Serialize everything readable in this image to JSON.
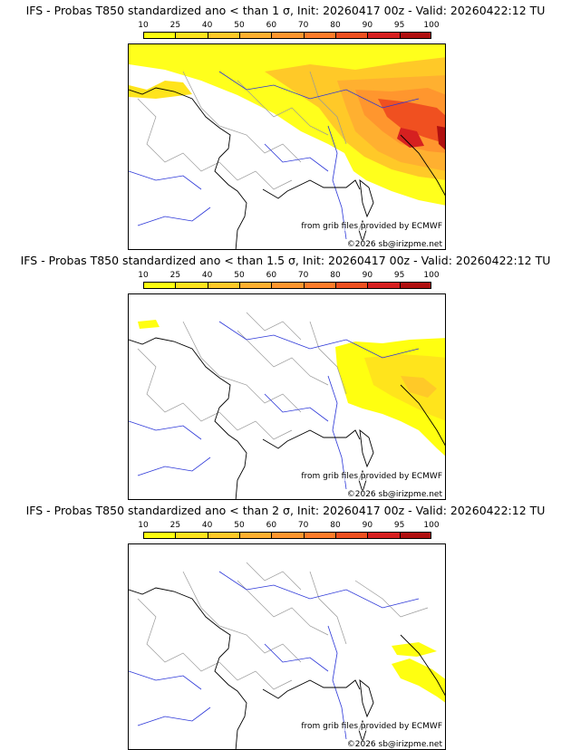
{
  "colorbar": {
    "ticks": [
      "10",
      "25",
      "40",
      "50",
      "60",
      "70",
      "80",
      "90",
      "95",
      "100"
    ],
    "colors": [
      "#ffff10",
      "#ffe41c",
      "#ffc928",
      "#ffb030",
      "#ff962e",
      "#ff7c2a",
      "#f05020",
      "#d62020",
      "#b01010",
      "#7c0c0c",
      "#500808"
    ]
  },
  "panels": [
    {
      "title": "IFS - Probas T850  standardized ano < than 1 σ, Init: 20260417 00z - Valid: 20260422:12 TU",
      "threshold": "1"
    },
    {
      "title": "IFS - Probas T850  standardized ano < than 1.5 σ, Init: 20260417 00z - Valid: 20260422:12 TU",
      "threshold": "1.5"
    },
    {
      "title": "IFS - Probas T850  standardized ano < than 2 σ, Init: 20260417 00z - Valid: 20260422:12 TU",
      "threshold": "2"
    }
  ],
  "credits": {
    "source": "from grib files provided by ECMWF",
    "copyright": "©2026 sb@irizpme.net"
  },
  "map_colors": {
    "coast": "#000000",
    "rivers": "#2a35d8",
    "borders": "#999999",
    "prob_low": "#ffff10",
    "prob_mid": "#ff962e",
    "prob_high": "#d62020"
  }
}
